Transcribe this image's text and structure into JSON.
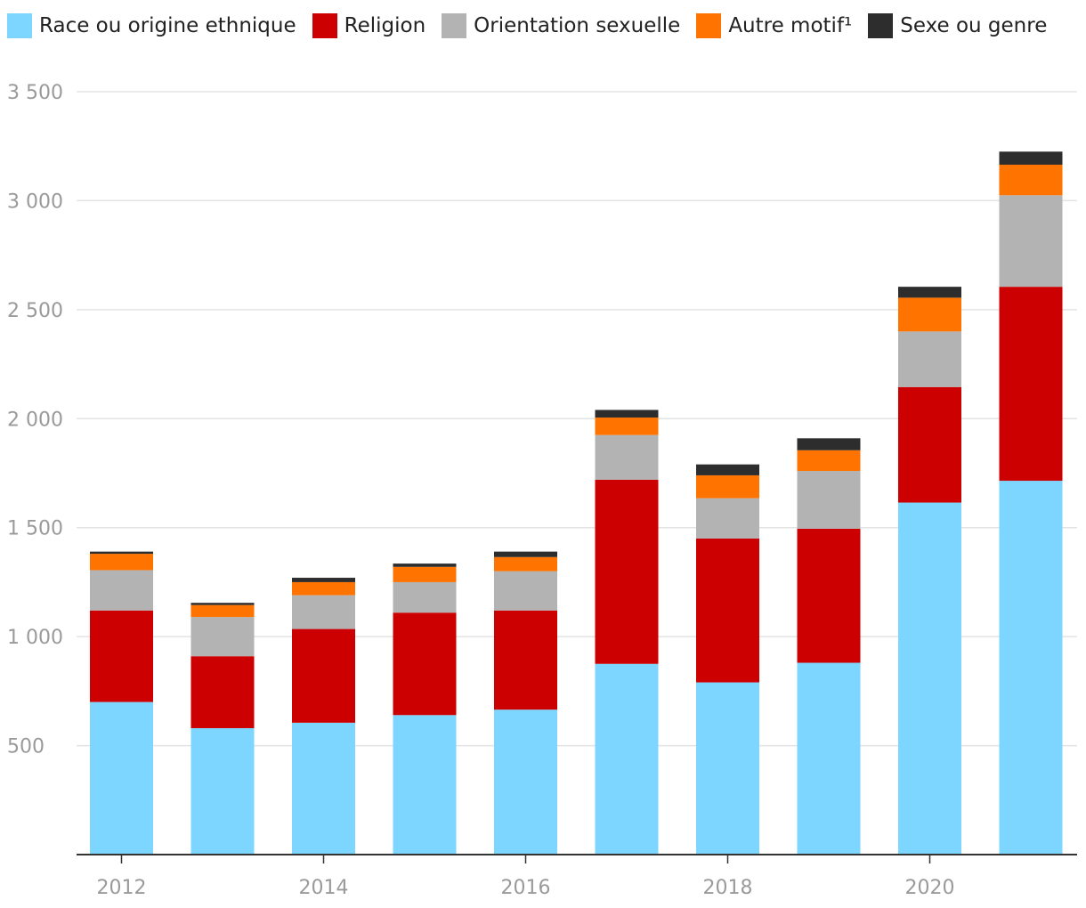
{
  "chart_data": {
    "type": "bar",
    "stacked": true,
    "categories": [
      "2012",
      "2013",
      "2014",
      "2015",
      "2016",
      "2017",
      "2018",
      "2019",
      "2020",
      "2021"
    ],
    "x_tick_labels": [
      "2012",
      "2014",
      "2016",
      "2018",
      "2020"
    ],
    "y_ticks": [
      500,
      1000,
      1500,
      2000,
      2500,
      3000,
      3500
    ],
    "y_tick_labels": [
      "500",
      "1 000",
      "1 500",
      "2 000",
      "2 500",
      "3 000",
      "3 500"
    ],
    "ylim": [
      0,
      3500
    ],
    "grid": true,
    "legend_position": "top-left",
    "series": [
      {
        "name": "Race ou origine ethnique",
        "color": "#7dd6ff",
        "values": [
          700,
          580,
          605,
          640,
          665,
          875,
          790,
          880,
          1615,
          1715
        ]
      },
      {
        "name": "Religion",
        "color": "#cc0000",
        "values": [
          420,
          330,
          430,
          470,
          455,
          845,
          660,
          615,
          530,
          890
        ]
      },
      {
        "name": "Orientation sexuelle",
        "color": "#b3b3b3",
        "values": [
          185,
          180,
          155,
          140,
          180,
          205,
          185,
          265,
          255,
          420
        ]
      },
      {
        "name": "Autre motif¹",
        "color": "#ff7300",
        "values": [
          75,
          55,
          60,
          70,
          65,
          80,
          105,
          95,
          155,
          140
        ]
      },
      {
        "name": "Sexe ou genre",
        "color": "#2d2d2d",
        "values": [
          10,
          10,
          20,
          15,
          25,
          35,
          50,
          55,
          50,
          60
        ]
      }
    ]
  }
}
